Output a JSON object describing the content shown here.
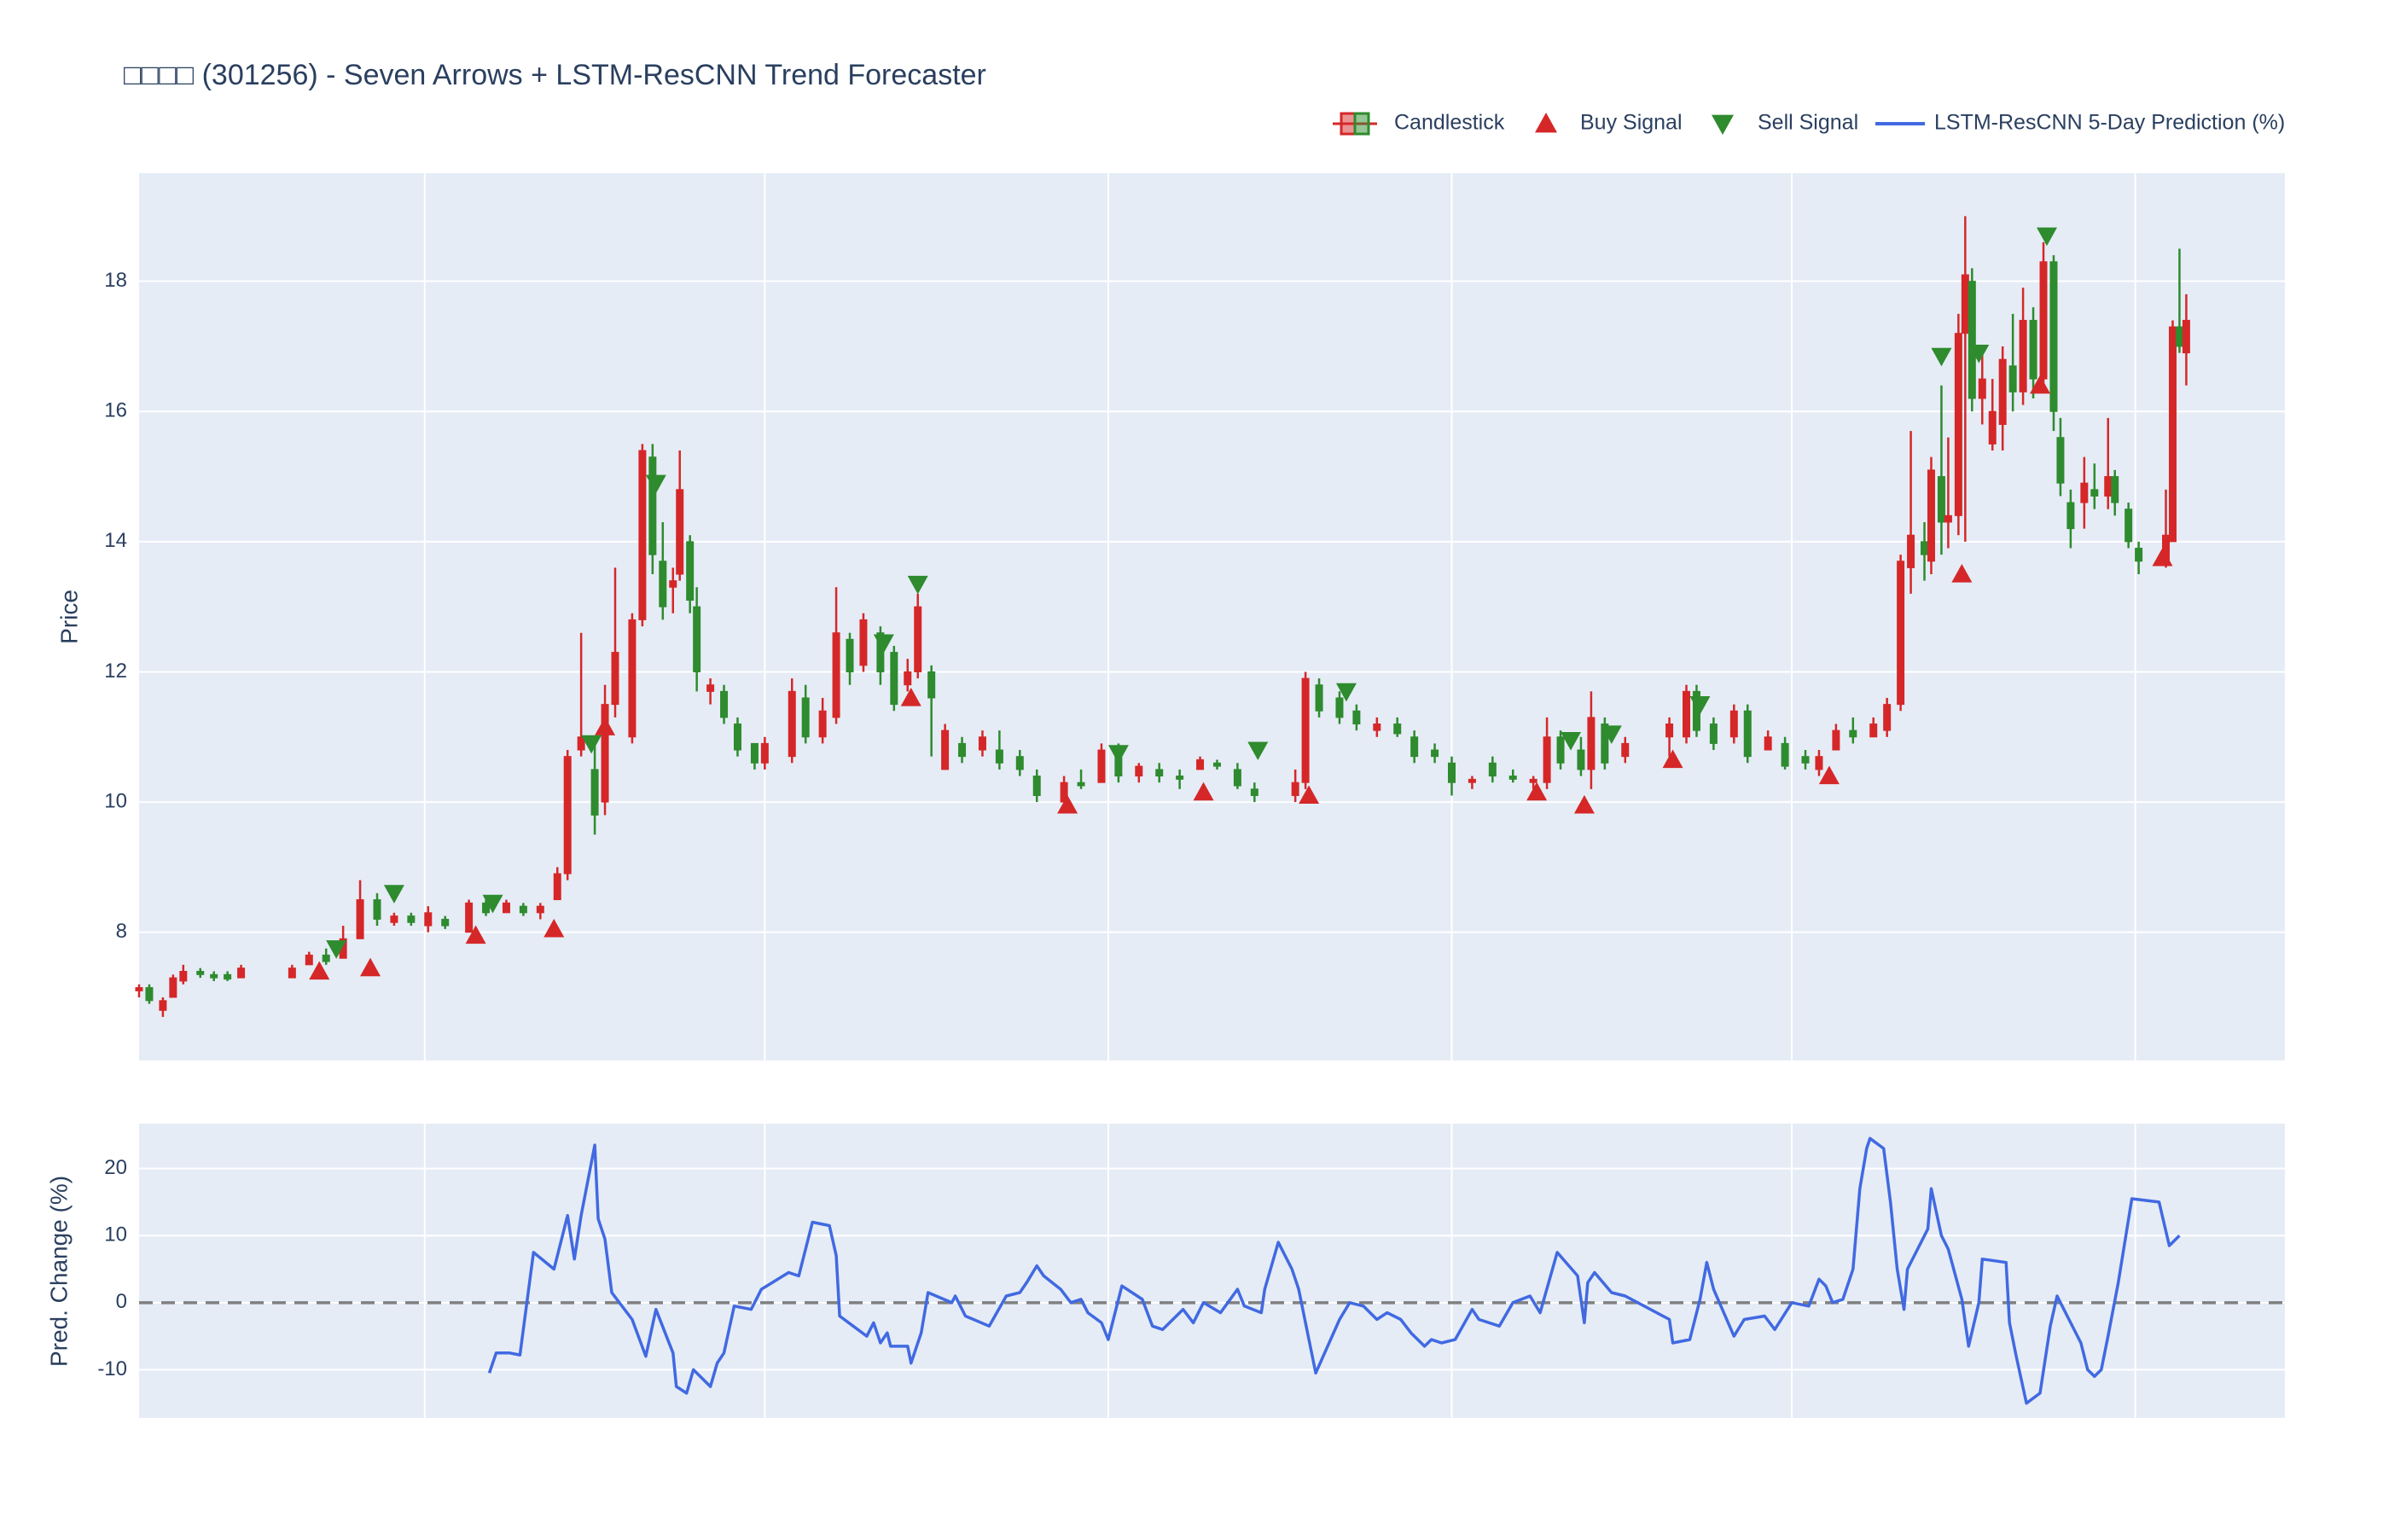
{
  "chart_data": [
    {
      "type": "candlestick",
      "title": "□□□□ (301256) - Seven Arrows + LSTM-ResCNN Trend Forecaster",
      "ylabel": "Price",
      "xlim": [
        0,
        631
      ],
      "xticks": [
        84,
        184,
        285,
        386,
        486,
        587
      ],
      "ylim": [
        6.03,
        19.66
      ],
      "yticks": [
        8,
        10,
        12,
        14,
        16,
        18
      ],
      "grid": true,
      "legend": "top-right",
      "candles": {
        "name": "Candlestick",
        "increasing_color": "#d62728",
        "decreasing_color": "#2e8b2e",
        "x": [
          0,
          3,
          7,
          10,
          13,
          18,
          22,
          26,
          30,
          45,
          50,
          55,
          60,
          65,
          70,
          75,
          80,
          85,
          90,
          97,
          102,
          108,
          113,
          118,
          123,
          126,
          130,
          134,
          137,
          140,
          145,
          148,
          151,
          154,
          157,
          159,
          162,
          164,
          168,
          172,
          176,
          181,
          184,
          192,
          196,
          201,
          205,
          209,
          213,
          218,
          222,
          226,
          229,
          233,
          237,
          242,
          248,
          253,
          259,
          264,
          272,
          277,
          283,
          288,
          294,
          300,
          306,
          312,
          317,
          323,
          328,
          340,
          343,
          347,
          353,
          358,
          364,
          370,
          375,
          381,
          386,
          392,
          398,
          404,
          410,
          414,
          418,
          424,
          427,
          431,
          437,
          450,
          455,
          458,
          463,
          469,
          473,
          479,
          484,
          490,
          494,
          499,
          504,
          510,
          514,
          518,
          521,
          525,
          527,
          530,
          532,
          535,
          537,
          539,
          542,
          545,
          548,
          551,
          554,
          557,
          560,
          563,
          565,
          568,
          572,
          575,
          579,
          581,
          585,
          588,
          596,
          598,
          600,
          602
        ],
        "open": [
          7.1,
          7.15,
          6.8,
          7.0,
          7.25,
          7.4,
          7.35,
          7.35,
          7.3,
          7.3,
          7.5,
          7.65,
          7.6,
          7.9,
          8.5,
          8.15,
          8.25,
          8.1,
          8.2,
          8.0,
          8.45,
          8.3,
          8.4,
          8.3,
          8.5,
          8.9,
          10.8,
          10.5,
          10.0,
          11.5,
          11.0,
          12.8,
          15.3,
          13.7,
          13.3,
          13.5,
          14.0,
          13.0,
          11.7,
          11.7,
          11.2,
          10.9,
          10.6,
          10.7,
          11.6,
          11.0,
          11.3,
          12.5,
          12.1,
          12.6,
          12.3,
          11.8,
          12.0,
          12.0,
          10.5,
          10.9,
          10.8,
          10.8,
          10.7,
          10.4,
          10.0,
          10.3,
          10.3,
          10.8,
          10.4,
          10.5,
          10.4,
          10.5,
          10.6,
          10.5,
          10.2,
          10.1,
          10.3,
          11.8,
          11.6,
          11.4,
          11.1,
          11.2,
          11.0,
          10.8,
          10.6,
          10.3,
          10.6,
          10.4,
          10.3,
          10.3,
          11.0,
          10.8,
          10.5,
          11.2,
          10.7,
          11.0,
          11.0,
          11.7,
          11.2,
          11.0,
          11.4,
          10.8,
          10.9,
          10.7,
          10.5,
          10.8,
          11.1,
          11.0,
          11.1,
          11.5,
          13.6,
          14.0,
          13.7,
          15.0,
          14.3,
          14.4,
          17.2,
          18.0,
          16.2,
          15.5,
          15.8,
          16.7,
          16.3,
          17.4,
          16.5,
          18.3,
          15.6,
          14.6,
          14.6,
          14.8,
          14.7,
          15.0,
          14.5,
          13.9,
          13.7,
          14.0,
          17.3,
          16.9
        ],
        "high": [
          7.2,
          7.2,
          7.0,
          7.35,
          7.5,
          7.45,
          7.4,
          7.4,
          7.5,
          7.5,
          7.7,
          7.75,
          8.1,
          8.8,
          8.6,
          8.3,
          8.3,
          8.4,
          8.25,
          8.5,
          8.5,
          8.5,
          8.45,
          8.45,
          9.0,
          10.8,
          12.6,
          11.0,
          11.8,
          13.6,
          12.9,
          15.5,
          15.5,
          14.3,
          13.6,
          15.4,
          14.1,
          13.3,
          11.9,
          11.8,
          11.3,
          10.9,
          11.0,
          11.9,
          11.8,
          11.6,
          13.3,
          12.6,
          12.9,
          12.7,
          12.4,
          12.2,
          13.2,
          12.1,
          11.2,
          11.0,
          11.1,
          11.1,
          10.8,
          10.5,
          10.4,
          10.5,
          10.9,
          10.9,
          10.6,
          10.6,
          10.5,
          10.7,
          10.65,
          10.6,
          10.3,
          10.5,
          12.0,
          11.9,
          11.7,
          11.5,
          11.3,
          11.3,
          11.1,
          10.9,
          10.7,
          10.4,
          10.7,
          10.5,
          10.4,
          11.3,
          11.1,
          11.0,
          11.7,
          11.3,
          11.0,
          11.3,
          11.8,
          11.8,
          11.3,
          11.5,
          11.5,
          11.1,
          11.0,
          10.8,
          10.8,
          11.2,
          11.3,
          11.3,
          11.6,
          13.8,
          15.7,
          14.3,
          15.3,
          16.4,
          15.6,
          17.5,
          19.0,
          18.2,
          17.0,
          16.5,
          17.0,
          17.5,
          17.9,
          17.6,
          18.6,
          18.4,
          15.9,
          14.8,
          15.3,
          15.2,
          15.9,
          15.1,
          14.6,
          14.0,
          14.8,
          17.4,
          18.5,
          17.8
        ],
        "low": [
          7.0,
          6.9,
          6.7,
          7.0,
          7.2,
          7.3,
          7.25,
          7.25,
          7.3,
          7.3,
          7.5,
          7.5,
          7.6,
          7.9,
          8.1,
          8.1,
          8.1,
          8.0,
          8.05,
          8.0,
          8.25,
          8.3,
          8.25,
          8.2,
          8.5,
          8.8,
          10.7,
          9.5,
          9.8,
          11.3,
          10.9,
          12.7,
          13.5,
          12.8,
          12.9,
          13.4,
          12.9,
          11.7,
          11.5,
          11.2,
          10.7,
          10.5,
          10.5,
          10.6,
          10.9,
          10.9,
          11.2,
          11.8,
          12.0,
          11.8,
          11.4,
          11.7,
          11.9,
          10.7,
          10.5,
          10.6,
          10.7,
          10.5,
          10.4,
          10.0,
          10.0,
          10.2,
          10.3,
          10.3,
          10.3,
          10.3,
          10.2,
          10.5,
          10.5,
          10.2,
          10.0,
          10.0,
          10.2,
          11.3,
          11.2,
          11.1,
          11.0,
          11.0,
          10.6,
          10.6,
          10.1,
          10.2,
          10.3,
          10.3,
          10.2,
          10.2,
          10.5,
          10.4,
          10.2,
          10.5,
          10.6,
          10.7,
          10.9,
          11.0,
          10.8,
          10.9,
          10.6,
          10.8,
          10.5,
          10.5,
          10.4,
          10.8,
          10.9,
          11.0,
          11.0,
          11.4,
          13.2,
          13.4,
          13.5,
          13.8,
          13.9,
          14.1,
          14.0,
          16.0,
          15.8,
          15.4,
          15.4,
          16.0,
          16.1,
          16.2,
          16.3,
          15.7,
          14.7,
          13.9,
          14.2,
          14.5,
          14.5,
          14.4,
          13.9,
          13.5,
          13.6,
          14.0,
          16.9,
          16.4
        ],
        "close": [
          7.15,
          6.95,
          6.95,
          7.3,
          7.4,
          7.35,
          7.3,
          7.28,
          7.45,
          7.45,
          7.65,
          7.55,
          7.9,
          8.5,
          8.2,
          8.25,
          8.15,
          8.3,
          8.1,
          8.45,
          8.3,
          8.45,
          8.3,
          8.4,
          8.9,
          10.7,
          11.0,
          9.8,
          11.5,
          12.3,
          12.8,
          15.4,
          13.8,
          13.0,
          13.4,
          14.8,
          13.1,
          12.0,
          11.8,
          11.3,
          10.8,
          10.6,
          10.9,
          11.7,
          11.0,
          11.4,
          12.6,
          12.0,
          12.8,
          12.0,
          11.5,
          12.0,
          13.0,
          11.6,
          11.1,
          10.7,
          11.0,
          10.6,
          10.5,
          10.1,
          10.3,
          10.25,
          10.8,
          10.4,
          10.55,
          10.4,
          10.35,
          10.65,
          10.55,
          10.25,
          10.1,
          10.3,
          11.9,
          11.4,
          11.3,
          11.2,
          11.2,
          11.05,
          10.7,
          10.7,
          10.3,
          10.35,
          10.4,
          10.35,
          10.35,
          11.0,
          10.6,
          10.5,
          11.3,
          10.6,
          10.9,
          11.2,
          11.7,
          11.1,
          10.9,
          11.4,
          10.7,
          11.0,
          10.55,
          10.6,
          10.7,
          11.1,
          11.0,
          11.2,
          11.5,
          13.7,
          14.1,
          13.8,
          15.1,
          14.3,
          14.4,
          17.2,
          18.1,
          16.2,
          16.5,
          16.0,
          16.8,
          16.3,
          17.4,
          16.5,
          18.3,
          16.0,
          14.9,
          14.2,
          14.9,
          14.7,
          15.0,
          14.6,
          14.0,
          13.7,
          14.1,
          17.3,
          17.0,
          17.4
        ]
      },
      "series": [
        {
          "name": "Buy Signal",
          "color": "#d62728",
          "marker": "triangle-up",
          "x": [
            53,
            68,
            99,
            122,
            137,
            227,
            273,
            313,
            344,
            411,
            425,
            451,
            497,
            536,
            559,
            595
          ],
          "values": [
            7.4,
            7.45,
            7.95,
            8.05,
            11.15,
            11.6,
            9.95,
            10.15,
            10.1,
            10.15,
            9.95,
            10.65,
            10.4,
            13.5,
            16.4,
            13.75
          ]
        },
        {
          "name": "Sell Signal",
          "color": "#2e8b2e",
          "marker": "triangle-down",
          "x": [
            58,
            75,
            104,
            133,
            152,
            219,
            229,
            288,
            329,
            355,
            421,
            433,
            459,
            530,
            541,
            561
          ],
          "values": [
            7.75,
            8.6,
            8.45,
            10.9,
            14.9,
            12.45,
            13.35,
            10.75,
            10.8,
            11.7,
            10.95,
            11.05,
            11.5,
            16.85,
            16.9,
            18.7
          ]
        }
      ]
    },
    {
      "type": "line",
      "ylabel": "Pred. Change (%)",
      "xlim": [
        0,
        631
      ],
      "xticks": [
        84,
        184,
        285,
        386,
        486,
        587
      ],
      "ylim": [
        -17.2,
        26.7
      ],
      "yticks": [
        -10,
        0,
        10,
        20
      ],
      "grid": true,
      "hline": 0,
      "hline_color": "#808080",
      "series": [
        {
          "name": "LSTM-ResCNN 5-Day Prediction (%)",
          "color": "#4169e1",
          "x": [
            103,
            105,
            109,
            112,
            116,
            122,
            126,
            128,
            130,
            134,
            135,
            137,
            139,
            145,
            149,
            152,
            157,
            158,
            161,
            163,
            168,
            170,
            172,
            175,
            180,
            183,
            191,
            194,
            198,
            203,
            205,
            206,
            210,
            214,
            216,
            218,
            220,
            221,
            226,
            227,
            230,
            232,
            239,
            240,
            243,
            250,
            255,
            259,
            261,
            264,
            266,
            271,
            274,
            277,
            279,
            283,
            285,
            289,
            295,
            298,
            301,
            307,
            310,
            313,
            318,
            323,
            325,
            330,
            331,
            335,
            339,
            341,
            346,
            353,
            356,
            360,
            364,
            367,
            371,
            374,
            378,
            380,
            383,
            387,
            392,
            394,
            400,
            404,
            409,
            412,
            417,
            423,
            425,
            426,
            428,
            433,
            437,
            450,
            451,
            456,
            459,
            461,
            463,
            469,
            472,
            478,
            481,
            486,
            491,
            494,
            496,
            498,
            501,
            504,
            506,
            508,
            509,
            513,
            515,
            517,
            519,
            520,
            526,
            527,
            530,
            532,
            536,
            538,
            541,
            542,
            549,
            550,
            552,
            555,
            559,
            562,
            564,
            567,
            571,
            573,
            575,
            577,
            579,
            582,
            586,
            594,
            597,
            600
          ],
          "values": [
            -10.5,
            -7.5,
            -7.5,
            -7.8,
            7.5,
            5,
            13,
            6.5,
            13,
            23.5,
            12.5,
            9.5,
            1.5,
            -2.5,
            -8,
            -1,
            -7.5,
            -12.5,
            -13.5,
            -10,
            -12.5,
            -9,
            -7.5,
            -0.5,
            -1,
            2,
            4.5,
            4,
            12,
            11.5,
            7,
            -2,
            -3.5,
            -5,
            -3,
            -6,
            -4.5,
            -6.5,
            -6.5,
            -9,
            -4.5,
            1.5,
            0,
            1,
            -2,
            -3.5,
            1,
            1.5,
            3,
            5.5,
            4,
            2,
            0,
            0.5,
            -1.5,
            -3,
            -5.5,
            2.5,
            0.5,
            -3.5,
            -4,
            -1,
            -3,
            0,
            -1.5,
            2,
            -0.5,
            -1.5,
            2,
            9,
            5,
            2,
            -10.5,
            -2.5,
            0,
            -0.5,
            -2.5,
            -1.5,
            -2.5,
            -4.5,
            -6.5,
            -5.5,
            -6,
            -5.5,
            -1,
            -2.5,
            -3.5,
            0,
            1,
            -1.5,
            7.5,
            4,
            -3,
            3,
            4.5,
            1.5,
            1,
            -2.5,
            -6,
            -5.5,
            0.5,
            6,
            2,
            -5,
            -2.5,
            -2,
            -4,
            0,
            -0.5,
            3.5,
            2.5,
            0,
            0.5,
            5,
            17,
            23,
            24.5,
            23,
            15,
            5,
            -1,
            5,
            11,
            17,
            10,
            8,
            0.5,
            -6.5,
            0,
            6.5,
            6,
            -3,
            -8,
            -15,
            -13.5,
            -3.5,
            1,
            -2,
            -6,
            -10,
            -11,
            -10,
            -5,
            3,
            15.5,
            15,
            8.5,
            10
          ]
        }
      ]
    }
  ]
}
